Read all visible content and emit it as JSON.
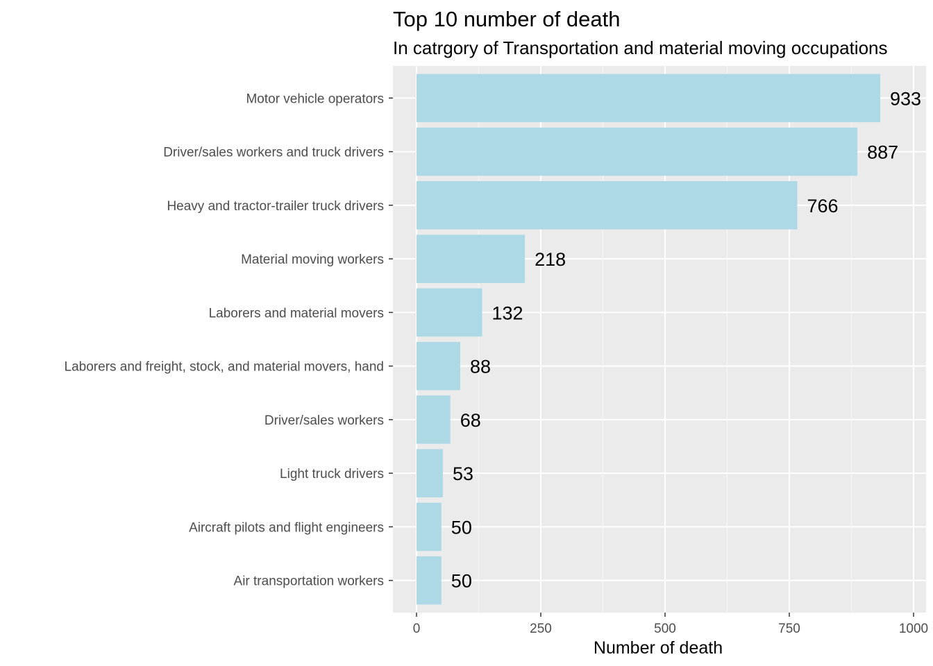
{
  "chart_data": {
    "type": "bar",
    "orientation": "horizontal",
    "title": "Top 10 number of death",
    "subtitle": "In catrgory of Transportation and material moving occupations",
    "xlabel": "Number of death",
    "ylabel": "",
    "xlim": [
      0,
      1000
    ],
    "x_ticks": [
      0,
      250,
      500,
      750,
      1000
    ],
    "x_tick_labels": [
      "0",
      "250",
      "500",
      "750",
      "1000"
    ],
    "grid": true,
    "categories": [
      "Motor vehicle operators",
      "Driver/sales workers and truck drivers",
      "Heavy and tractor-trailer truck drivers",
      "Material moving workers",
      "Laborers and material movers",
      "Laborers and freight, stock, and material movers, hand",
      "Driver/sales workers",
      "Light truck drivers",
      "Aircraft pilots and flight engineers",
      "Air transportation workers"
    ],
    "values": [
      933,
      887,
      766,
      218,
      132,
      88,
      68,
      53,
      50,
      50
    ],
    "data_labels": [
      "933",
      "887",
      "766",
      "218",
      "132",
      "88",
      "68",
      "53",
      "50",
      "50"
    ],
    "colors": {
      "bar": "#add8e6",
      "panel": "#ebebeb",
      "grid_major": "#ffffff",
      "grid_minor": "#f5f5f5",
      "tick": "#333333"
    }
  }
}
